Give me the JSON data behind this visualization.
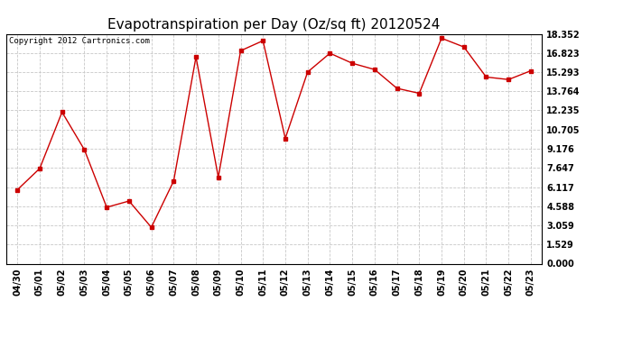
{
  "title": "Evapotranspiration per Day (Oz/sq ft) 20120524",
  "copyright": "Copyright 2012 Cartronics.com",
  "x_labels": [
    "04/30",
    "05/01",
    "05/02",
    "05/03",
    "05/04",
    "05/05",
    "05/06",
    "05/07",
    "05/08",
    "05/09",
    "05/10",
    "05/11",
    "05/12",
    "05/13",
    "05/14",
    "05/15",
    "05/16",
    "05/17",
    "05/18",
    "05/19",
    "05/20",
    "05/21",
    "05/22",
    "05/23"
  ],
  "y_values": [
    5.9,
    7.6,
    12.1,
    9.1,
    4.5,
    5.0,
    2.9,
    6.6,
    16.5,
    6.9,
    17.0,
    17.8,
    10.0,
    15.3,
    16.8,
    16.0,
    15.5,
    14.0,
    13.6,
    18.0,
    17.3,
    14.9,
    14.7,
    15.4
  ],
  "y_ticks": [
    0.0,
    1.529,
    3.059,
    4.588,
    6.117,
    7.647,
    9.176,
    10.705,
    12.235,
    13.764,
    15.293,
    16.823,
    18.352
  ],
  "line_color": "#cc0000",
  "marker": "s",
  "marker_size": 2.5,
  "bg_color": "#ffffff",
  "plot_bg_color": "#ffffff",
  "grid_color": "#c8c8c8",
  "title_fontsize": 11,
  "copyright_fontsize": 6.5,
  "tick_fontsize": 7,
  "ylim": [
    0.0,
    18.352
  ]
}
